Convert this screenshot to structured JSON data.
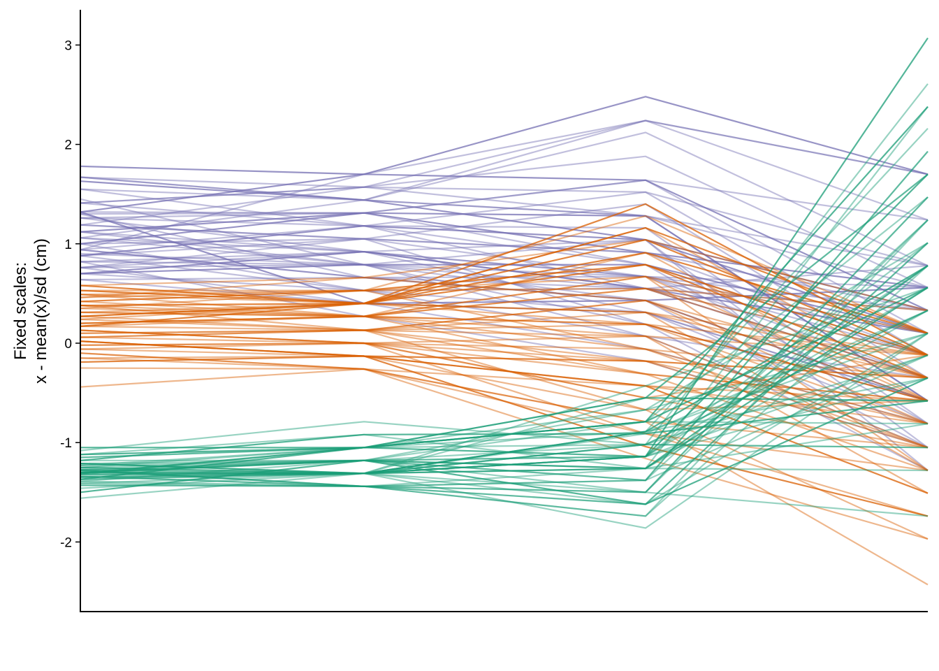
{
  "chart_data": {
    "type": "line",
    "subtype": "parallel-coordinates",
    "title": "",
    "xlabel": "",
    "ylabel_lines": [
      "Fixed scales:",
      "x - mean(x)/sd (cm)"
    ],
    "ylim": [
      -2.7,
      3.35
    ],
    "yticks": [
      -2,
      -1,
      0,
      1,
      2,
      3
    ],
    "ytick_labels": [
      "-2",
      "-1",
      "0",
      "1",
      "2",
      "3"
    ],
    "x": [
      1,
      2,
      3,
      4
    ],
    "xticks_visible": false,
    "grid": false,
    "legend": "none",
    "series": [
      {
        "color": "#7570B3",
        "opacity_typical": 0.45,
        "lines": [
          [
            1.78,
            1.7,
            2.48,
            1.7
          ],
          [
            1.67,
            1.44,
            2.24,
            1.7
          ],
          [
            1.67,
            1.57,
            2.24,
            1.24
          ],
          [
            1.55,
            1.44,
            2.12,
            0.78
          ],
          [
            1.41,
            1.57,
            1.88,
            0.56
          ],
          [
            1.32,
            1.7,
            1.64,
            0.33
          ],
          [
            1.3,
            1.31,
            1.64,
            0.1
          ],
          [
            1.26,
            1.18,
            1.52,
            -0.12
          ],
          [
            1.19,
            1.05,
            1.4,
            -0.35
          ],
          [
            1.06,
            1.44,
            1.28,
            -0.58
          ],
          [
            1.0,
            1.31,
            1.28,
            -0.58
          ],
          [
            0.94,
            1.18,
            1.16,
            -0.81
          ],
          [
            0.9,
            0.79,
            1.04,
            -1.05
          ],
          [
            0.82,
            0.92,
            1.04,
            -1.28
          ],
          [
            0.76,
            1.05,
            0.91,
            -0.12
          ],
          [
            0.7,
            0.79,
            0.79,
            0.1
          ],
          [
            0.64,
            0.66,
            0.67,
            0.33
          ],
          [
            1.06,
            0.92,
            0.67,
            0.56
          ],
          [
            1.12,
            0.79,
            0.55,
            0.78
          ],
          [
            0.88,
            0.53,
            0.55,
            -0.35
          ],
          [
            1.32,
            0.4,
            0.43,
            -0.58
          ],
          [
            0.76,
            0.92,
            0.31,
            -0.81
          ],
          [
            1.0,
            1.05,
            0.19,
            -1.28
          ],
          [
            0.82,
            0.79,
            0.07,
            -1.05
          ],
          [
            1.41,
            1.18,
            0.55,
            -0.12
          ],
          [
            1.63,
            1.44,
            1.04,
            0.33
          ],
          [
            1.19,
            1.57,
            1.28,
            0.78
          ],
          [
            0.94,
            1.7,
            2.24,
            1.7
          ],
          [
            1.26,
            0.92,
            0.67,
            0.1
          ],
          [
            0.76,
            0.4,
            0.31,
            -0.58
          ],
          [
            1.12,
            1.31,
            0.91,
            0.56
          ],
          [
            0.88,
            1.05,
            0.67,
            -0.35
          ],
          [
            1.45,
            0.79,
            0.43,
            -1.05
          ],
          [
            1.3,
            0.66,
            0.55,
            0.33
          ],
          [
            1.55,
            1.18,
            0.79,
            -0.12
          ],
          [
            0.7,
            0.92,
            0.55,
            0.1
          ],
          [
            1.06,
            0.79,
            0.19,
            -0.58
          ],
          [
            0.64,
            0.4,
            -0.06,
            -0.81
          ],
          [
            1.0,
            0.53,
            0.07,
            -0.35
          ],
          [
            0.82,
            0.27,
            -0.18,
            -1.05
          ],
          [
            0.94,
            0.66,
            0.43,
            0.56
          ],
          [
            1.32,
            1.31,
            1.64,
            1.24
          ],
          [
            1.19,
            1.05,
            0.91,
            0.33
          ],
          [
            0.76,
            0.79,
            0.67,
            -0.12
          ],
          [
            1.67,
            1.44,
            1.28,
            0.56
          ],
          [
            0.88,
            1.18,
            1.04,
            0.1
          ],
          [
            1.12,
            0.92,
            0.55,
            -0.35
          ],
          [
            0.7,
            0.53,
            0.31,
            -0.58
          ],
          [
            1.41,
            1.57,
            1.52,
            0.78
          ],
          [
            1.26,
            1.31,
            0.79,
            -0.81
          ]
        ]
      },
      {
        "color": "#D95F02",
        "opacity_typical": 0.45,
        "lines": [
          [
            0.58,
            0.4,
            1.4,
            -0.12
          ],
          [
            0.53,
            0.53,
            1.28,
            0.1
          ],
          [
            0.49,
            0.4,
            1.16,
            -0.35
          ],
          [
            0.46,
            0.66,
            1.04,
            0.33
          ],
          [
            0.42,
            0.27,
            0.91,
            -0.58
          ],
          [
            0.38,
            0.4,
            0.79,
            -0.12
          ],
          [
            0.35,
            0.53,
            0.67,
            0.1
          ],
          [
            0.31,
            0.27,
            0.55,
            -0.35
          ],
          [
            0.27,
            0.13,
            0.43,
            -0.81
          ],
          [
            0.24,
            0.4,
            0.31,
            -0.12
          ],
          [
            0.2,
            0.27,
            0.19,
            -0.58
          ],
          [
            0.17,
            0.13,
            0.07,
            -1.05
          ],
          [
            0.13,
            0.0,
            -0.06,
            -0.35
          ],
          [
            0.1,
            0.13,
            -0.18,
            -0.81
          ],
          [
            0.06,
            0.0,
            -0.31,
            -1.28
          ],
          [
            0.02,
            -0.13,
            -0.43,
            -1.51
          ],
          [
            -0.02,
            0.0,
            -0.55,
            -0.12
          ],
          [
            -0.06,
            -0.13,
            -0.67,
            -0.58
          ],
          [
            -0.1,
            -0.26,
            -0.79,
            -1.05
          ],
          [
            -0.15,
            -0.26,
            -0.91,
            -1.28
          ],
          [
            -0.19,
            -0.13,
            -1.04,
            -1.74
          ],
          [
            -0.25,
            -0.26,
            -1.16,
            -1.97
          ],
          [
            -0.44,
            -0.26,
            -0.79,
            -2.43
          ],
          [
            0.49,
            0.27,
            0.67,
            -0.58
          ],
          [
            0.38,
            0.13,
            0.43,
            -0.35
          ],
          [
            0.27,
            0.4,
            0.91,
            0.1
          ],
          [
            0.17,
            0.27,
            0.55,
            -0.12
          ],
          [
            0.06,
            0.13,
            0.19,
            -0.81
          ],
          [
            -0.06,
            0.0,
            -0.18,
            -1.05
          ],
          [
            -0.15,
            -0.13,
            -0.43,
            -0.58
          ],
          [
            0.42,
            0.53,
            0.79,
            -0.35
          ],
          [
            0.31,
            0.4,
            0.31,
            -1.28
          ],
          [
            0.2,
            0.27,
            -0.06,
            -0.81
          ],
          [
            0.1,
            0.13,
            -0.31,
            -0.58
          ],
          [
            -0.02,
            0.0,
            -0.55,
            -1.05
          ],
          [
            0.53,
            0.4,
            1.04,
            -0.12
          ],
          [
            0.35,
            0.27,
            0.07,
            -1.51
          ],
          [
            0.24,
            0.13,
            -0.67,
            -1.97
          ],
          [
            0.13,
            0.0,
            -0.91,
            -1.74
          ],
          [
            0.46,
            0.53,
            0.55,
            0.33
          ],
          [
            0.02,
            -0.13,
            -0.18,
            -0.35
          ],
          [
            0.58,
            0.66,
            0.43,
            -0.58
          ],
          [
            0.27,
            0.4,
            0.19,
            -0.12
          ],
          [
            -0.1,
            -0.26,
            -0.43,
            -0.81
          ],
          [
            0.38,
            0.27,
            0.67,
            -1.28
          ],
          [
            0.17,
            0.4,
            1.16,
            0.1
          ],
          [
            0.06,
            0.13,
            0.31,
            -0.35
          ],
          [
            0.49,
            0.53,
            -0.06,
            -1.05
          ],
          [
            0.31,
            0.27,
            -0.31,
            -0.58
          ],
          [
            0.13,
            0.0,
            0.07,
            -0.12
          ]
        ]
      },
      {
        "color": "#1B9E77",
        "opacity_typical": 0.45,
        "lines": [
          [
            -1.05,
            -1.05,
            -1.14,
            3.07
          ],
          [
            -1.08,
            -0.79,
            -1.02,
            2.61
          ],
          [
            -1.12,
            -0.92,
            -1.26,
            2.38
          ],
          [
            -1.15,
            -1.05,
            -0.89,
            2.16
          ],
          [
            -1.18,
            -1.18,
            -1.38,
            1.93
          ],
          [
            -1.21,
            -1.31,
            -1.14,
            1.7
          ],
          [
            -1.23,
            -1.05,
            -0.79,
            1.47
          ],
          [
            -1.25,
            -1.18,
            -1.5,
            1.24
          ],
          [
            -1.27,
            -1.31,
            -1.62,
            1.01
          ],
          [
            -1.28,
            -1.44,
            -1.74,
            0.78
          ],
          [
            -1.3,
            -1.31,
            -1.26,
            0.56
          ],
          [
            -1.31,
            -1.18,
            -1.02,
            0.33
          ],
          [
            -1.32,
            -1.31,
            -0.89,
            0.1
          ],
          [
            -1.34,
            -1.44,
            -1.38,
            -0.12
          ],
          [
            -1.35,
            -1.31,
            -1.14,
            -0.35
          ],
          [
            -1.37,
            -1.05,
            -0.55,
            -0.58
          ],
          [
            -1.39,
            -1.18,
            -0.79,
            -0.81
          ],
          [
            -1.41,
            -1.31,
            -1.02,
            -1.05
          ],
          [
            -1.43,
            -1.44,
            -1.26,
            -1.28
          ],
          [
            -1.46,
            -1.31,
            -1.5,
            -1.74
          ],
          [
            -1.5,
            -1.18,
            -1.62,
            -0.35
          ],
          [
            -1.56,
            -1.31,
            -1.86,
            0.1
          ],
          [
            -1.28,
            -1.31,
            -0.43,
            0.56
          ],
          [
            -1.3,
            -1.18,
            -1.14,
            1.01
          ],
          [
            -1.32,
            -1.05,
            -0.55,
            1.7
          ],
          [
            -1.25,
            -1.31,
            -0.89,
            0.78
          ],
          [
            -1.34,
            -1.44,
            -1.5,
            1.47
          ],
          [
            -1.21,
            -1.18,
            -1.26,
            0.33
          ],
          [
            -1.37,
            -1.31,
            -1.02,
            -0.12
          ],
          [
            -1.27,
            -1.44,
            -1.74,
            1.24
          ],
          [
            -1.31,
            -1.05,
            -0.79,
            0.56
          ],
          [
            -1.23,
            -1.18,
            -1.38,
            1.93
          ],
          [
            -1.35,
            -1.31,
            -1.14,
            0.78
          ],
          [
            -1.28,
            -1.18,
            -0.67,
            0.1
          ],
          [
            -1.41,
            -1.44,
            -1.62,
            1.01
          ],
          [
            -1.18,
            -0.92,
            -0.91,
            -0.58
          ],
          [
            -1.3,
            -1.31,
            -1.26,
            -0.81
          ],
          [
            -1.32,
            -1.31,
            -0.55,
            1.7
          ],
          [
            -1.25,
            -1.05,
            -1.02,
            0.33
          ],
          [
            -1.39,
            -1.44,
            -1.38,
            1.24
          ],
          [
            -1.12,
            -1.05,
            -0.79,
            2.38
          ],
          [
            -1.27,
            -1.18,
            -1.14,
            0.56
          ],
          [
            -1.34,
            -1.31,
            -0.89,
            -0.35
          ],
          [
            -1.43,
            -1.44,
            -1.5,
            1.47
          ],
          [
            -1.21,
            -1.31,
            -1.02,
            -1.05
          ],
          [
            -1.3,
            -1.18,
            -1.26,
            0.78
          ],
          [
            -1.15,
            -1.05,
            -0.67,
            1.01
          ],
          [
            -1.37,
            -1.31,
            -1.14,
            -0.12
          ],
          [
            -1.28,
            -1.44,
            -1.62,
            0.1
          ],
          [
            -1.32,
            -1.31,
            -0.91,
            0.33
          ]
        ]
      }
    ]
  }
}
